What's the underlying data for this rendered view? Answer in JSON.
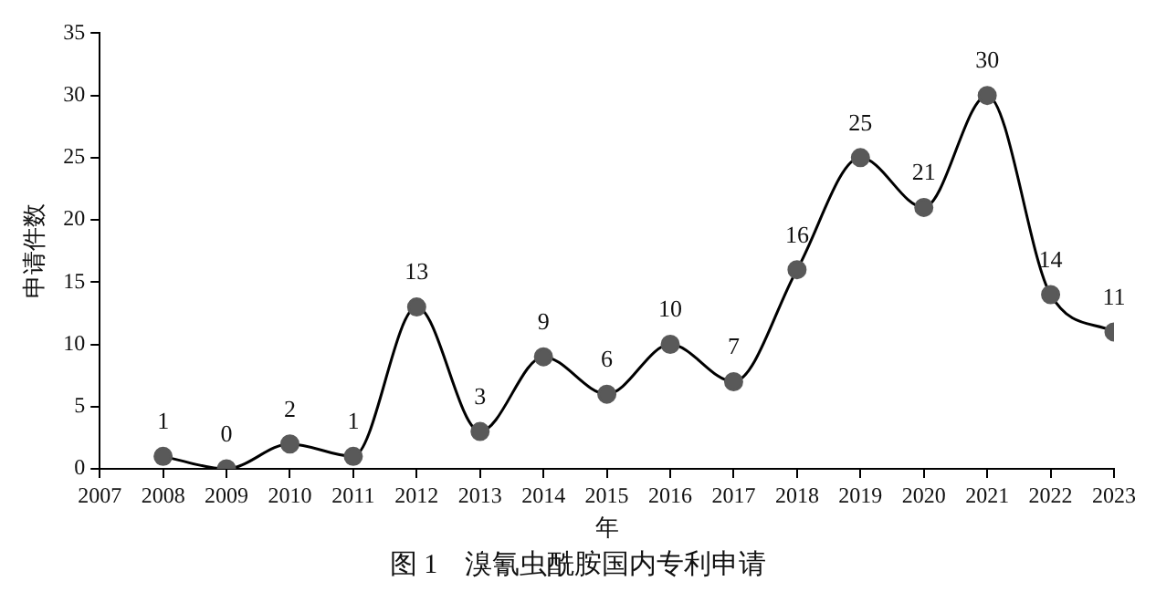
{
  "chart_data": {
    "type": "line",
    "title": "图 1　溴氰虫酰胺国内专利申请",
    "xlabel": "年",
    "ylabel": "申请件数",
    "x": [
      2008,
      2009,
      2010,
      2011,
      2012,
      2013,
      2014,
      2015,
      2016,
      2017,
      2018,
      2019,
      2020,
      2021,
      2022,
      2023
    ],
    "series": [
      {
        "color": "#595959",
        "values": [
          1,
          0,
          2,
          1,
          13,
          3,
          9,
          6,
          10,
          7,
          16,
          25,
          21,
          30,
          14,
          11
        ]
      }
    ],
    "xlim": [
      2007,
      2023
    ],
    "xticks": [
      2007,
      2008,
      2009,
      2010,
      2011,
      2012,
      2013,
      2014,
      2015,
      2016,
      2017,
      2018,
      2019,
      2020,
      2021,
      2022,
      2023
    ],
    "ylim": [
      0,
      35
    ],
    "yticks": [
      0,
      5,
      10,
      15,
      20,
      25,
      30,
      35
    ],
    "marker": "circle",
    "line_style": "solid",
    "data_labels": true,
    "grid": false,
    "legend": false
  }
}
